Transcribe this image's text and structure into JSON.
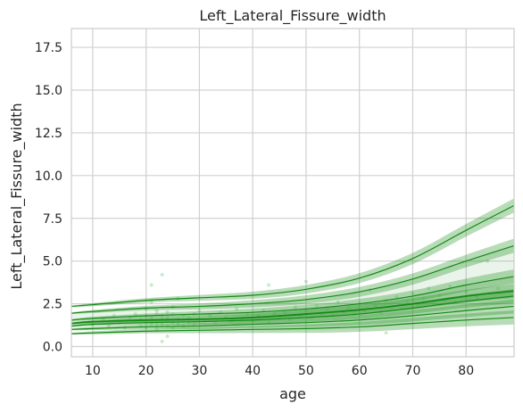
{
  "chart_data": {
    "type": "line",
    "title": "Left_Lateral_Fissure_width",
    "xlabel": "age",
    "ylabel": "Left_Lateral_Fissure_width",
    "xlim": [
      6,
      89
    ],
    "ylim": [
      -0.6,
      18.6
    ],
    "x_ticks": [
      10,
      20,
      30,
      40,
      50,
      60,
      70,
      80
    ],
    "y_ticks": [
      0.0,
      2.5,
      5.0,
      7.5,
      10.0,
      12.5,
      15.0,
      17.5
    ],
    "y_tick_labels": [
      "0.0",
      "2.5",
      "5.0",
      "7.5",
      "10.0",
      "12.5",
      "15.0",
      "17.5"
    ],
    "grid": true,
    "colors": {
      "line": "#138a13",
      "band": "#138a13",
      "points": "#4caf50",
      "grid": "#d0d0d0",
      "frame": "#cccccc"
    },
    "x": [
      6,
      10,
      20,
      30,
      40,
      50,
      60,
      70,
      80,
      89
    ],
    "series": [
      {
        "values": [
          0.75,
          0.8,
          0.9,
          0.95,
          1.0,
          1.05,
          1.15,
          1.35,
          1.55,
          1.7
        ]
      },
      {
        "values": [
          1.0,
          1.05,
          1.15,
          1.2,
          1.3,
          1.4,
          1.55,
          1.8,
          2.1,
          2.35
        ]
      },
      {
        "values": [
          1.2,
          1.3,
          1.4,
          1.45,
          1.55,
          1.7,
          1.9,
          2.25,
          2.65,
          2.95
        ]
      },
      {
        "values": [
          1.35,
          1.45,
          1.55,
          1.6,
          1.7,
          1.9,
          2.15,
          2.5,
          2.95,
          3.25
        ]
      },
      {
        "values": [
          1.55,
          1.65,
          1.8,
          1.9,
          2.0,
          2.2,
          2.5,
          2.95,
          3.6,
          4.1
        ]
      },
      {
        "values": [
          1.95,
          2.05,
          2.25,
          2.35,
          2.5,
          2.75,
          3.2,
          3.95,
          5.0,
          5.9
        ]
      },
      {
        "values": [
          2.35,
          2.45,
          2.7,
          2.85,
          3.0,
          3.35,
          4.0,
          5.15,
          6.8,
          8.25
        ]
      }
    ],
    "scatter_note": "",
    "points": [
      [
        10,
        1.3
      ],
      [
        12,
        1.6
      ],
      [
        13,
        1.2
      ],
      [
        14,
        1.8
      ],
      [
        15,
        1.4
      ],
      [
        16,
        1.1
      ],
      [
        17,
        1.7
      ],
      [
        18,
        1.5
      ],
      [
        18,
        1.9
      ],
      [
        19,
        1.2
      ],
      [
        19,
        1.6
      ],
      [
        20,
        1.4
      ],
      [
        20,
        1.8
      ],
      [
        20,
        2.2
      ],
      [
        20,
        1.1
      ],
      [
        21,
        1.5
      ],
      [
        21,
        1.3
      ],
      [
        21,
        2.6
      ],
      [
        21,
        3.6
      ],
      [
        21,
        1.7
      ],
      [
        22,
        1.2
      ],
      [
        22,
        1.9
      ],
      [
        22,
        1.4
      ],
      [
        22,
        2.1
      ],
      [
        22,
        1.0
      ],
      [
        23,
        1.6
      ],
      [
        23,
        1.3
      ],
      [
        23,
        4.2
      ],
      [
        23,
        1.8
      ],
      [
        23,
        0.3
      ],
      [
        24,
        1.5
      ],
      [
        24,
        1.2
      ],
      [
        24,
        2.0
      ],
      [
        24,
        0.6
      ],
      [
        24,
        1.7
      ],
      [
        25,
        1.4
      ],
      [
        25,
        1.9
      ],
      [
        25,
        1.1
      ],
      [
        25,
        2.3
      ],
      [
        26,
        1.6
      ],
      [
        26,
        1.3
      ],
      [
        26,
        2.8
      ],
      [
        27,
        1.5
      ],
      [
        27,
        1.8
      ],
      [
        27,
        1.2
      ],
      [
        28,
        1.7
      ],
      [
        28,
        1.4
      ],
      [
        29,
        1.9
      ],
      [
        29,
        1.3
      ],
      [
        30,
        1.6
      ],
      [
        30,
        2.1
      ],
      [
        31,
        1.5
      ],
      [
        32,
        1.8
      ],
      [
        33,
        1.4
      ],
      [
        34,
        2.0
      ],
      [
        35,
        1.7
      ],
      [
        36,
        1.5
      ],
      [
        37,
        2.2
      ],
      [
        38,
        1.6
      ],
      [
        39,
        1.9
      ],
      [
        40,
        1.5
      ],
      [
        41,
        1.8
      ],
      [
        42,
        2.1
      ],
      [
        43,
        1.4
      ],
      [
        43,
        3.6
      ],
      [
        44,
        1.9
      ],
      [
        45,
        1.7
      ],
      [
        46,
        2.0
      ],
      [
        47,
        1.6
      ],
      [
        48,
        2.3
      ],
      [
        49,
        1.8
      ],
      [
        50,
        2.1
      ],
      [
        50,
        3.8
      ],
      [
        51,
        1.7
      ],
      [
        52,
        2.4
      ],
      [
        53,
        1.9
      ],
      [
        54,
        2.2
      ],
      [
        55,
        1.8
      ],
      [
        56,
        2.6
      ],
      [
        57,
        2.0
      ],
      [
        58,
        2.3
      ],
      [
        59,
        1.9
      ],
      [
        60,
        2.5
      ],
      [
        61,
        2.1
      ],
      [
        62,
        3.3
      ],
      [
        63,
        2.4
      ],
      [
        64,
        2.0
      ],
      [
        65,
        2.7
      ],
      [
        65,
        0.8
      ],
      [
        66,
        2.3
      ],
      [
        67,
        2.9
      ],
      [
        68,
        2.2
      ],
      [
        69,
        2.6
      ],
      [
        70,
        3.1
      ],
      [
        71,
        2.4
      ],
      [
        72,
        2.8
      ],
      [
        73,
        3.4
      ],
      [
        74,
        2.5
      ],
      [
        75,
        3.0
      ],
      [
        76,
        2.7
      ],
      [
        77,
        3.5
      ],
      [
        78,
        2.6
      ],
      [
        80,
        3.2
      ],
      [
        82,
        2.9
      ],
      [
        84,
        5.0
      ],
      [
        86,
        3.4
      ]
    ]
  }
}
